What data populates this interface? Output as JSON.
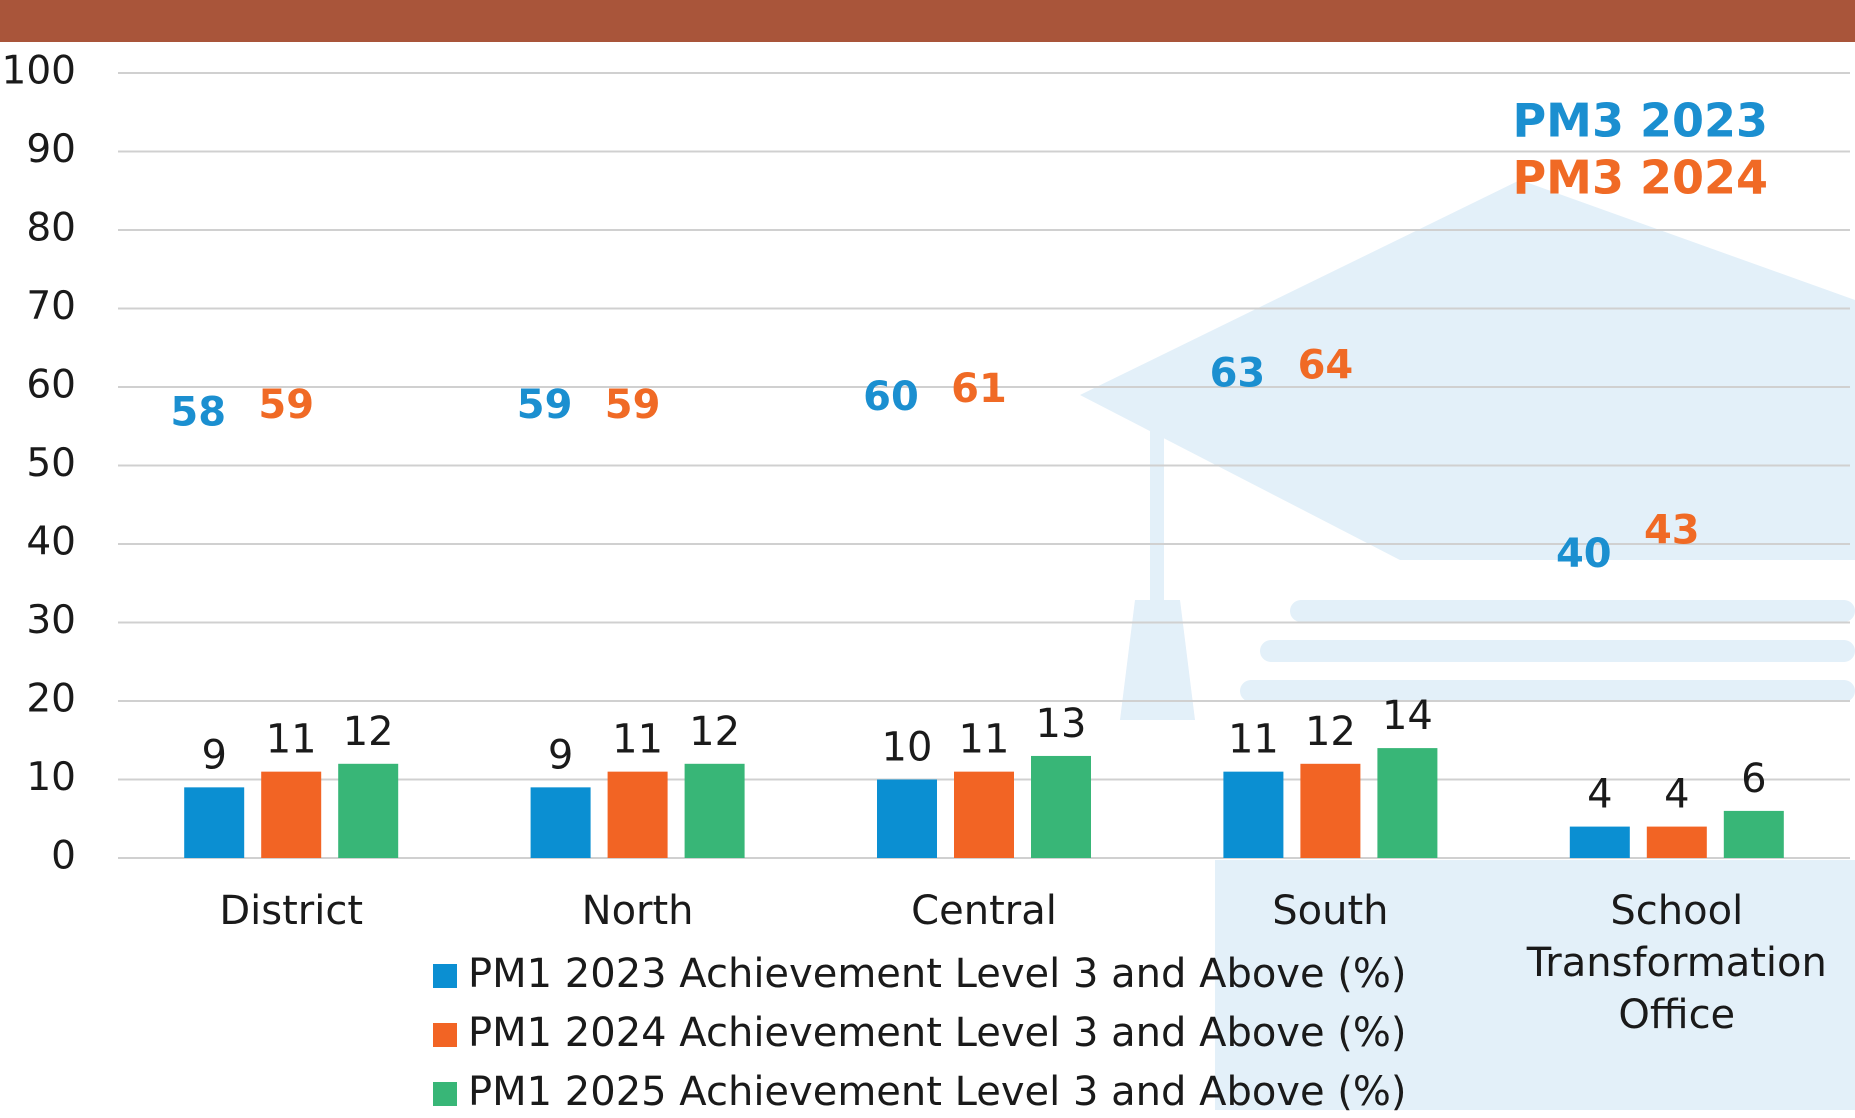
{
  "chart_data": {
    "type": "bar",
    "categories": [
      "District",
      "North",
      "Central",
      "South",
      "School Transformation Office"
    ],
    "series": [
      {
        "name": "PM1 2023 Achievement Level 3 and Above (%)",
        "color": "#0b8fd2",
        "values": [
          9,
          9,
          10,
          11,
          4
        ]
      },
      {
        "name": "PM1 2024 Achievement Level 3 and Above (%)",
        "color": "#f26424",
        "values": [
          11,
          11,
          11,
          12,
          4
        ]
      },
      {
        "name": "PM1 2025 Achievement Level 3 and Above (%)",
        "color": "#38b677",
        "values": [
          12,
          12,
          13,
          14,
          6
        ]
      }
    ],
    "annotation_series": [
      {
        "name": "PM3 2023",
        "color": "#1b8fd0",
        "values": [
          58,
          59,
          60,
          63,
          40
        ]
      },
      {
        "name": "PM3 2024",
        "color": "#f06a25",
        "values": [
          59,
          59,
          61,
          64,
          43
        ]
      }
    ],
    "ylim": [
      0,
      100
    ],
    "yticks": [
      0,
      10,
      20,
      30,
      40,
      50,
      60,
      70,
      80,
      90,
      100
    ],
    "grid": true
  }
}
